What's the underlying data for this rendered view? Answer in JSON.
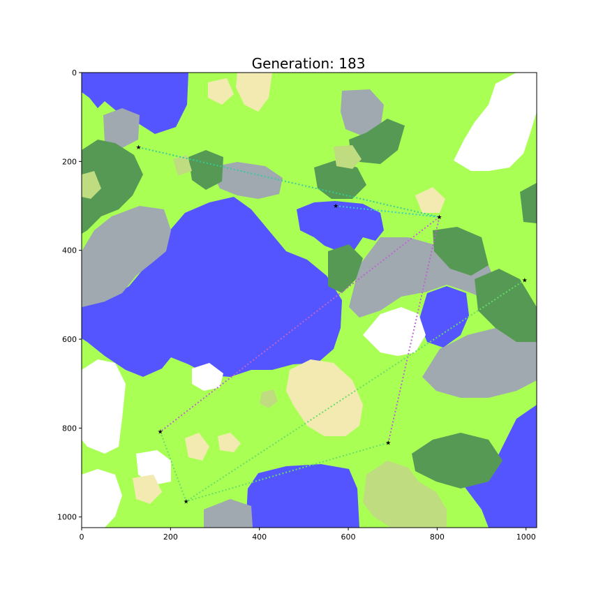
{
  "chart_data": {
    "type": "heatmap",
    "title": "Generation: 183",
    "xlabel": "",
    "ylabel": "",
    "xlim": [
      0,
      1024
    ],
    "ylim": [
      1024,
      0
    ],
    "x_ticks": [
      "0",
      "200",
      "400",
      "600",
      "800",
      "1000"
    ],
    "y_ticks": [
      "0",
      "200",
      "400",
      "600",
      "800",
      "1000"
    ],
    "grid": false,
    "terrain_colors": {
      "water": "#5555ff",
      "grass": "#aaff55",
      "forest": "#559955",
      "rock": "#a0a8b0",
      "snow": "#ffffff",
      "sand": "#f2eab0",
      "meadow": "#c0dc80"
    },
    "cities": [
      {
        "x": 128,
        "y": 168
      },
      {
        "x": 572,
        "y": 300
      },
      {
        "x": 805,
        "y": 325
      },
      {
        "x": 997,
        "y": 467
      },
      {
        "x": 177,
        "y": 808
      },
      {
        "x": 690,
        "y": 833
      },
      {
        "x": 235,
        "y": 965
      }
    ],
    "routes": [
      {
        "color": "#33cc99",
        "points": [
          [
            128,
            168
          ],
          [
            805,
            325
          ]
        ]
      },
      {
        "color": "#33cccc",
        "points": [
          [
            572,
            300
          ],
          [
            805,
            325
          ]
        ]
      },
      {
        "color": "#bb66cc",
        "points": [
          [
            805,
            325
          ],
          [
            177,
            808
          ]
        ]
      },
      {
        "color": "#bb66cc",
        "points": [
          [
            805,
            325
          ],
          [
            690,
            833
          ]
        ]
      },
      {
        "color": "#66dd66",
        "points": [
          [
            997,
            467
          ],
          [
            235,
            965
          ]
        ]
      },
      {
        "color": "#66dd66",
        "points": [
          [
            177,
            808
          ],
          [
            235,
            965
          ],
          [
            690,
            833
          ]
        ]
      }
    ]
  }
}
